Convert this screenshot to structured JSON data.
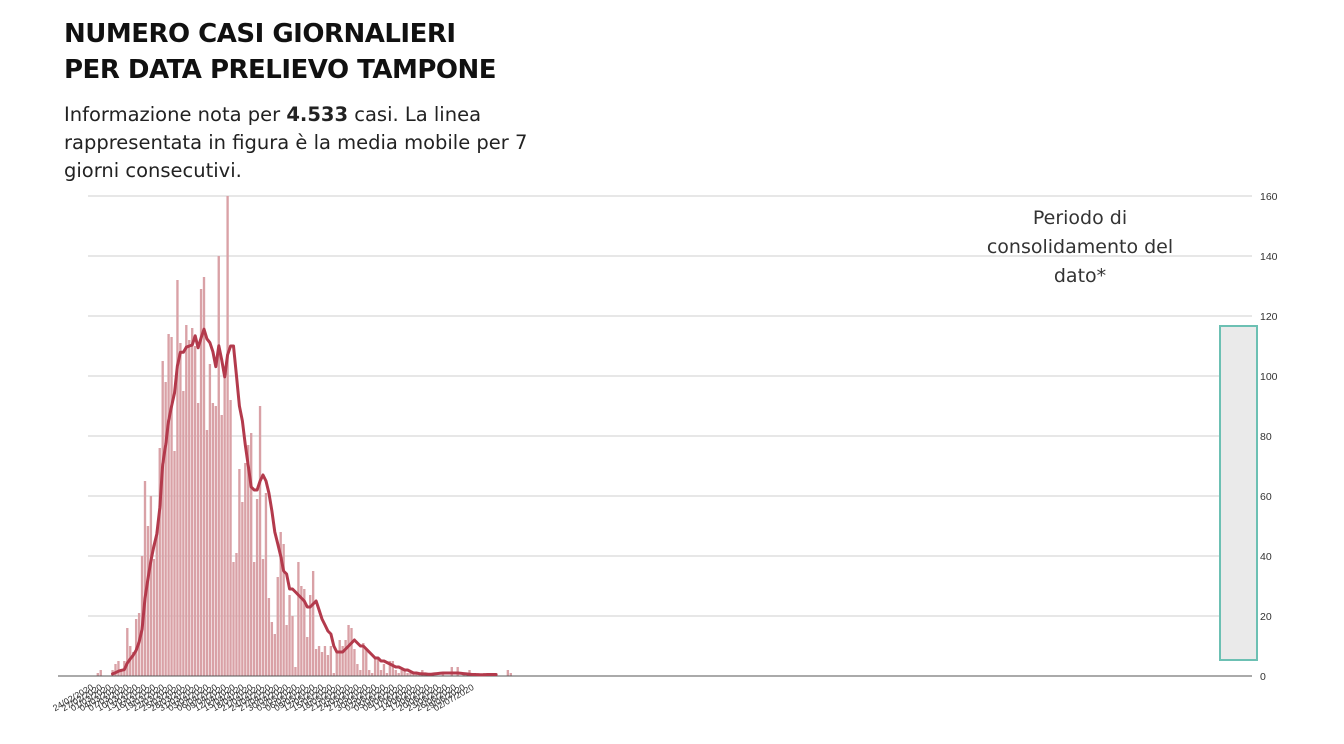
{
  "colors": {
    "bar": "#d9a1a6",
    "bar_edge": "#c98a90",
    "line": "#b33a4c",
    "grid": "#cfcfcf",
    "highlight_border": "#6cc0b3",
    "highlight_fill": "#eaeaea"
  },
  "header": {
    "title_line1": "NUMERO CASI GIORNALIERI",
    "title_line2": "PER DATA PRELIEVO TAMPONE",
    "subtitle_pre": "Informazione nota per",
    "subtitle_count": "4.533",
    "subtitle_post": "casi. La linea rappresentata in figura è la media mobile per 7 giorni consecutivi."
  },
  "annotation": {
    "text": "Periodo di consolidamento del dato*"
  },
  "chart_data": {
    "type": "bar",
    "title": "NUMERO CASI GIORNALIERI PER DATA PRELIEVO TAMPONE",
    "start_date": "24/02/2020",
    "ylim": [
      0,
      160
    ],
    "yticks": [
      "0",
      "20",
      "40",
      "60",
      "80",
      "100",
      "120",
      "140",
      "160"
    ],
    "y_axis_side": "right",
    "grid": true,
    "xtick_labels": [
      "24/02/2020",
      "27/02/2020",
      "01/03/2020",
      "04/03/2020",
      "07/03/2020",
      "10/03/2020",
      "13/03/2020",
      "16/03/2020",
      "19/03/2020",
      "22/03/2020",
      "25/03/2020",
      "28/03/2020",
      "31/03/2020",
      "03/04/2020",
      "06/04/2020",
      "09/04/2020",
      "12/04/2020",
      "15/04/2020",
      "18/04/2020",
      "21/04/2020",
      "24/04/2020",
      "27/04/2020",
      "30/04/2020",
      "03/05/2020",
      "06/05/2020",
      "09/05/2020",
      "12/05/2020",
      "15/05/2020",
      "18/05/2020",
      "21/05/2020",
      "24/05/2020",
      "27/05/2020",
      "30/05/2020",
      "02/06/2020",
      "05/06/2020",
      "08/06/2020",
      "11/06/2020",
      "14/06/2020",
      "17/06/2020",
      "20/06/2020",
      "23/06/2020",
      "26/06/2020",
      "29/06/2020",
      "02/07/2020"
    ],
    "series": [
      {
        "type": "bar",
        "values": [
          0,
          0,
          0,
          0,
          1,
          2,
          0,
          0,
          0,
          2,
          4,
          5,
          2,
          5,
          16,
          10,
          8,
          19,
          21,
          40,
          65,
          50,
          60,
          39,
          48,
          76,
          105,
          98,
          114,
          113,
          75,
          132,
          111,
          95,
          117,
          112,
          116,
          110,
          91,
          129,
          133,
          82,
          104,
          91,
          90,
          140,
          87,
          101,
          160,
          92,
          38,
          41,
          69,
          58,
          71,
          77,
          81,
          38,
          59,
          90,
          39,
          61,
          26,
          18,
          14,
          33,
          48,
          44,
          17,
          27,
          20,
          3,
          38,
          30,
          29,
          13,
          27,
          35,
          9,
          10,
          8,
          10,
          7,
          10,
          1,
          8,
          12,
          10,
          12,
          17,
          16,
          9,
          4,
          2,
          11,
          9,
          2,
          1,
          6,
          6,
          2,
          4,
          1,
          5,
          5,
          2,
          1,
          2,
          2,
          1,
          1,
          1,
          1,
          1,
          2,
          1,
          1,
          0,
          0,
          0,
          0,
          1,
          0,
          0,
          3,
          0,
          3,
          0,
          1,
          0,
          2,
          0,
          0,
          1,
          0,
          1,
          0,
          0,
          1,
          0,
          0,
          0,
          0,
          2,
          1
        ]
      },
      {
        "type": "line",
        "values": [
          null,
          null,
          null,
          null,
          null,
          null,
          null,
          null,
          null,
          0.7,
          1.1,
          1.6,
          1.9,
          2.1,
          4.3,
          5.7,
          6.9,
          8.6,
          11.3,
          15.6,
          25.9,
          32.3,
          38.4,
          43.3,
          47.3,
          56.0,
          70.6,
          77.1,
          85.1,
          90.0,
          94.3,
          103.4,
          107.9,
          107.9,
          109.6,
          110.0,
          110.3,
          113.4,
          109.4,
          112.7,
          115.6,
          112.4,
          111.1,
          108.1,
          103.1,
          110.1,
          105.4,
          99.7,
          107.1,
          110.0,
          110.0,
          100.0,
          90.0,
          85.0,
          77.0,
          70.0,
          63.0,
          62.0,
          62.0,
          65.0,
          67.0,
          65.0,
          61.0,
          55.0,
          48.0,
          44.0,
          40.0,
          35.0,
          34.0,
          29.0,
          29.0,
          28.0,
          27.0,
          26.0,
          25.0,
          23.0,
          23.0,
          24.0,
          25.0,
          22.0,
          19.0,
          17.0,
          15.0,
          14.0,
          10.0,
          8.0,
          8.0,
          8.0,
          9.0,
          10.0,
          11.0,
          12.0,
          11.0,
          10.0,
          10.0,
          9.0,
          8.0,
          7.0,
          6.0,
          6.0,
          5.0,
          5.0,
          4.5,
          4.0,
          3.5,
          3.0,
          3.0,
          2.5,
          2.0,
          2.0,
          1.5,
          1.0,
          1.0,
          0.8,
          0.7,
          0.7,
          0.6,
          0.6,
          0.7,
          0.8,
          0.9,
          1.0,
          1.0,
          1.0,
          1.0,
          1.0,
          1.0,
          0.9,
          0.8,
          0.7,
          0.6,
          0.5,
          0.5,
          0.4,
          0.4,
          0.4,
          0.5,
          0.5,
          0.5,
          0.5
        ]
      }
    ]
  }
}
